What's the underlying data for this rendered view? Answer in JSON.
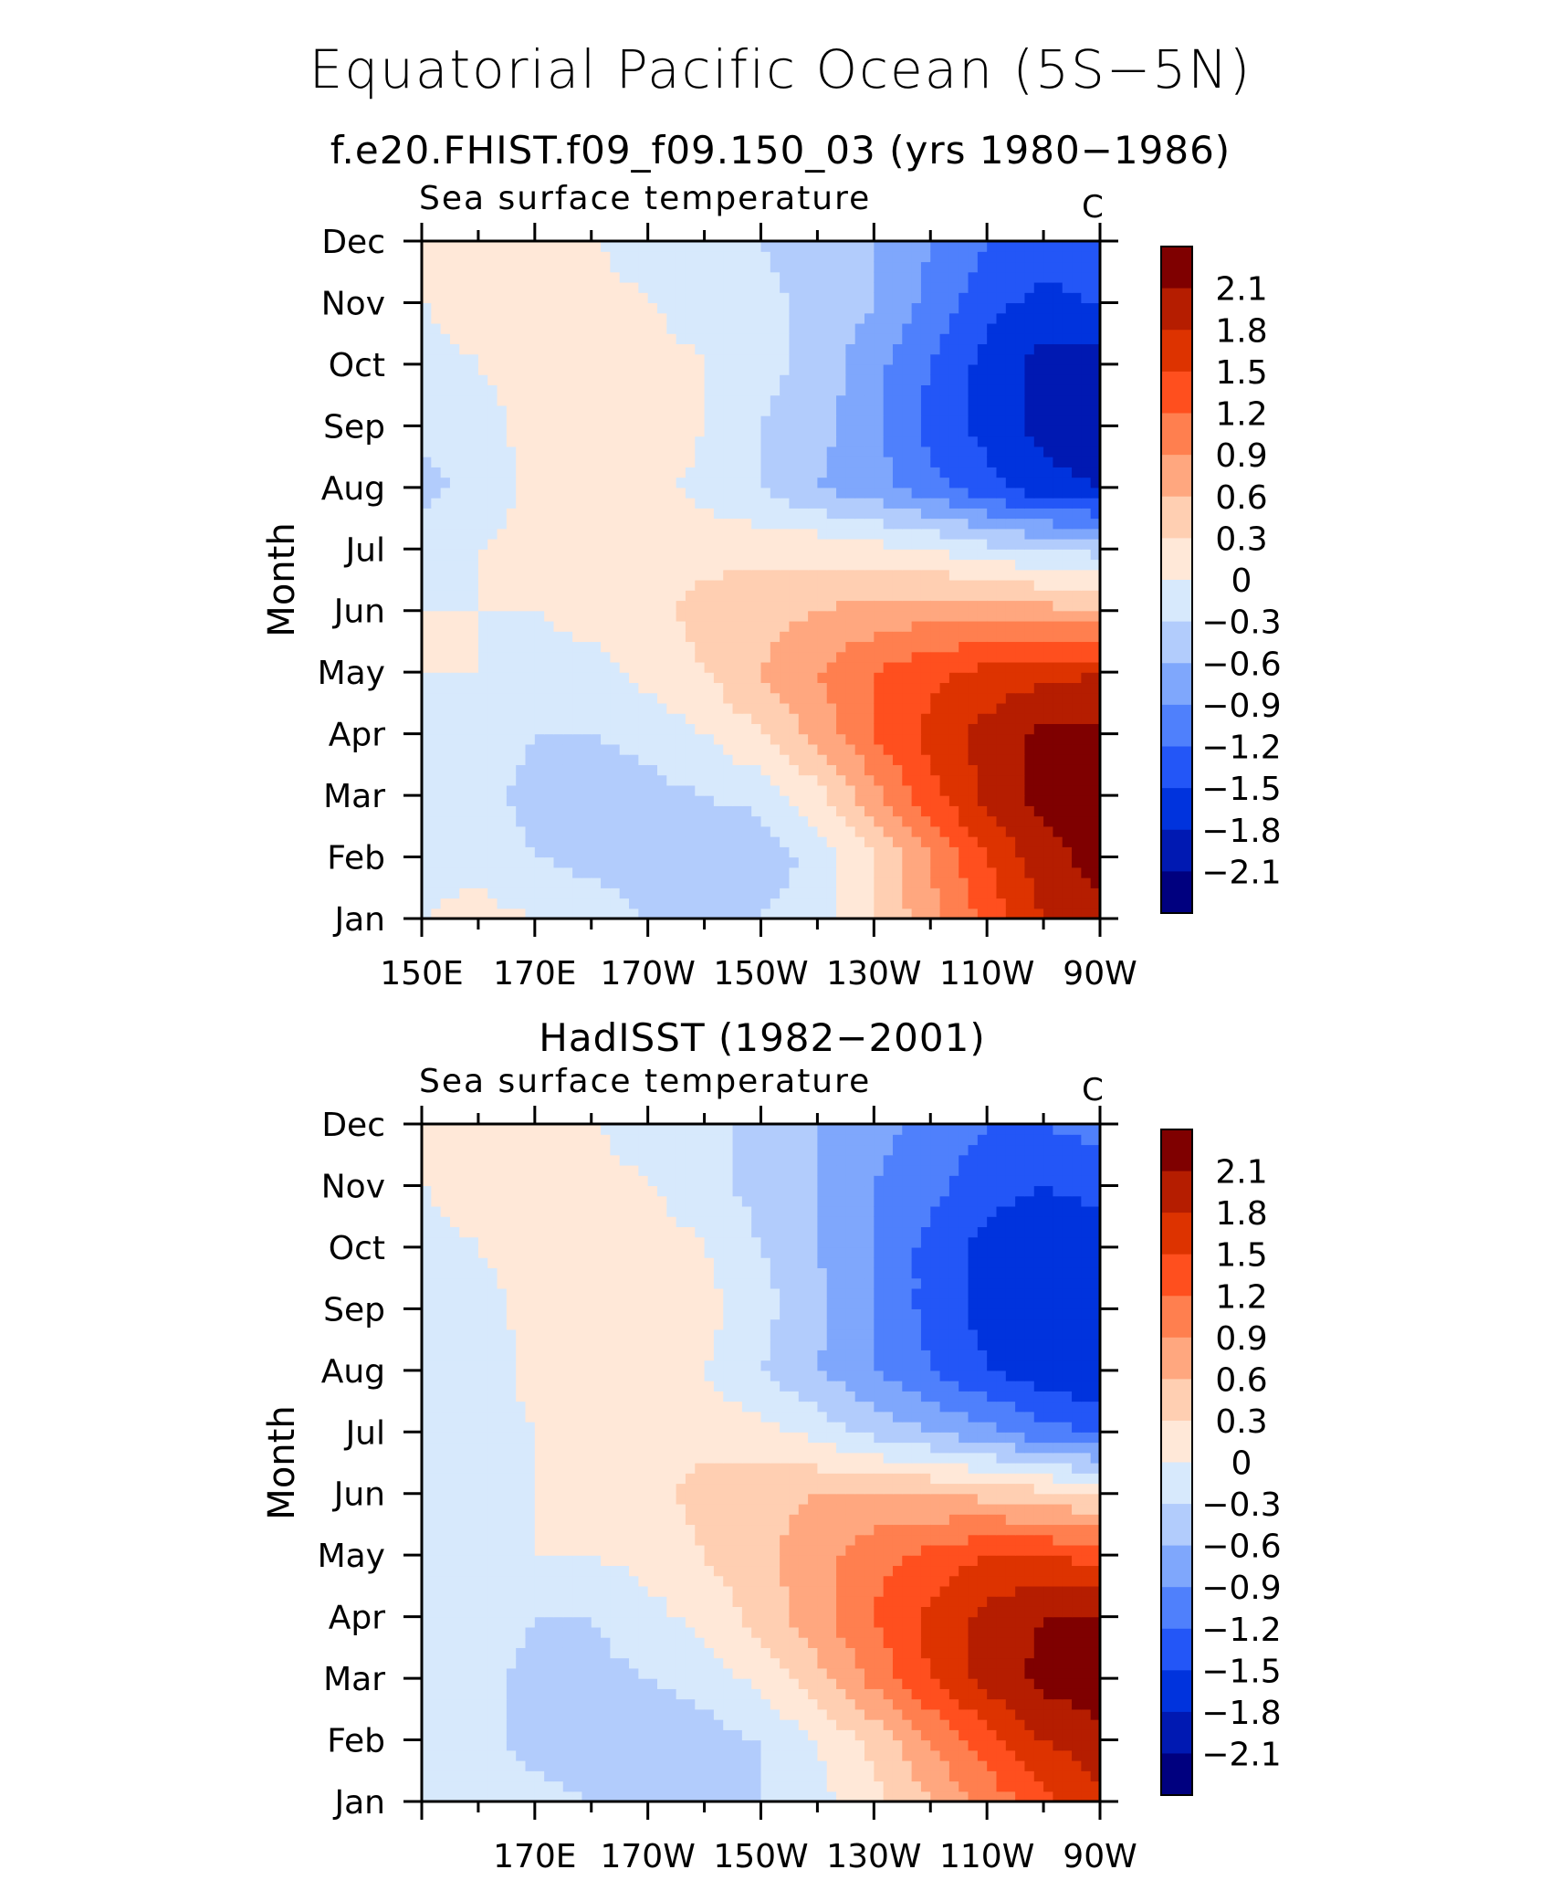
{
  "figure": {
    "title": "Equatorial Pacific Ocean (5S−5N)",
    "colorbar_levels": [
      2.1,
      1.8,
      1.5,
      1.2,
      0.9,
      0.6,
      0.3,
      0,
      -0.3,
      -0.6,
      -0.9,
      -1.2,
      -1.5,
      -1.8,
      -2.1
    ],
    "colorbar_labels": [
      "2.1",
      "1.8",
      "1.5",
      "1.2",
      "0.9",
      "0.6",
      "0.3",
      "0",
      "−0.3",
      "−0.6",
      "−0.9",
      "−1.2",
      "−1.5",
      "−1.8",
      "−2.1"
    ],
    "colorbar_colors": [
      "#7f0000",
      "#b51d00",
      "#dd3300",
      "#ff4f1e",
      "#ff7f4f",
      "#ffa77f",
      "#ffcfb2",
      "#ffe8d8",
      "#d7e9fc",
      "#b2ccfc",
      "#7fa7fc",
      "#4f80fc",
      "#2356f7",
      "#0033dd",
      "#0019b2",
      "#00007f"
    ]
  },
  "chart_data": [
    {
      "type": "heatmap",
      "subtitle": "f.e20.FHIST.f09_f09.150_03 (yrs 1980−1986)",
      "title": "Sea surface temperature",
      "units": "C",
      "ylabel": "Month",
      "y_ticks": [
        "Jan",
        "Feb",
        "Mar",
        "Apr",
        "May",
        "Jun",
        "Jul",
        "Aug",
        "Sep",
        "Oct",
        "Nov",
        "Dec"
      ],
      "x_ticks": [
        "150E",
        "170E",
        "170W",
        "150W",
        "130W",
        "110W",
        "90W"
      ],
      "xlim": [
        150,
        270
      ],
      "x": [
        150,
        160,
        170,
        180,
        190,
        200,
        210,
        220,
        230,
        240,
        250,
        260,
        270
      ],
      "values": [
        [
          0.0,
          0.1,
          0.0,
          -0.1,
          -0.3,
          -0.3,
          -0.3,
          -0.1,
          0.3,
          0.8,
          1.3,
          1.8,
          2.0
        ],
        [
          -0.1,
          -0.1,
          -0.3,
          -0.4,
          -0.5,
          -0.6,
          -0.5,
          -0.2,
          0.3,
          0.9,
          1.5,
          2.0,
          2.2
        ],
        [
          -0.1,
          -0.2,
          -0.4,
          -0.5,
          -0.4,
          -0.3,
          -0.2,
          0.2,
          0.8,
          1.4,
          1.9,
          2.2,
          2.3
        ],
        [
          0.0,
          -0.1,
          -0.3,
          -0.3,
          -0.2,
          0.0,
          0.3,
          0.7,
          1.2,
          1.6,
          1.9,
          2.2,
          2.2
        ],
        [
          0.0,
          0.0,
          -0.1,
          -0.1,
          0.1,
          0.3,
          0.6,
          0.9,
          1.2,
          1.4,
          1.6,
          1.7,
          1.8
        ],
        [
          0.0,
          0.0,
          0.0,
          0.1,
          0.2,
          0.4,
          0.5,
          0.6,
          0.7,
          0.8,
          0.8,
          0.7,
          0.6
        ],
        [
          -0.1,
          0.0,
          0.1,
          0.1,
          0.2,
          0.2,
          0.2,
          0.2,
          0.1,
          0.0,
          -0.2,
          -0.3,
          -0.4
        ],
        [
          -0.4,
          -0.2,
          0.1,
          0.2,
          0.1,
          -0.1,
          -0.3,
          -0.6,
          -0.8,
          -1.1,
          -1.4,
          -1.7,
          -1.8
        ],
        [
          -0.2,
          -0.1,
          0.1,
          0.3,
          0.3,
          0.0,
          -0.3,
          -0.5,
          -0.8,
          -1.3,
          -1.6,
          -1.9,
          -2.0
        ],
        [
          -0.1,
          0.0,
          0.1,
          0.2,
          0.1,
          0.0,
          -0.2,
          -0.4,
          -0.8,
          -1.2,
          -1.6,
          -1.9,
          -1.9
        ],
        [
          0.0,
          0.1,
          0.1,
          0.1,
          0.0,
          -0.1,
          -0.2,
          -0.4,
          -0.6,
          -1.0,
          -1.4,
          -1.6,
          -1.5
        ],
        [
          0.1,
          0.1,
          0.1,
          0.0,
          -0.1,
          -0.2,
          -0.3,
          -0.5,
          -0.6,
          -0.9,
          -1.2,
          -1.3,
          -1.2
        ]
      ]
    },
    {
      "type": "heatmap",
      "subtitle": "HadISST (1982−2001)",
      "title": "Sea surface temperature",
      "units": "C",
      "ylabel": "Month",
      "y_ticks": [
        "Jan",
        "Feb",
        "Mar",
        "Apr",
        "May",
        "Jun",
        "Jul",
        "Aug",
        "Sep",
        "Oct",
        "Nov",
        "Dec"
      ],
      "x_ticks": [
        "170E",
        "170W",
        "150W",
        "130W",
        "110W",
        "90W"
      ],
      "xlim": [
        150,
        270
      ],
      "x": [
        150,
        160,
        170,
        180,
        190,
        200,
        210,
        220,
        230,
        240,
        250,
        260,
        270
      ],
      "values": [
        [
          0.0,
          -0.1,
          -0.2,
          -0.3,
          -0.4,
          -0.4,
          -0.3,
          -0.1,
          0.2,
          0.6,
          1.0,
          1.4,
          1.7
        ],
        [
          -0.1,
          -0.2,
          -0.4,
          -0.5,
          -0.5,
          -0.4,
          -0.3,
          0.0,
          0.4,
          0.9,
          1.4,
          1.8,
          2.0
        ],
        [
          -0.1,
          -0.2,
          -0.4,
          -0.4,
          -0.3,
          -0.2,
          0.1,
          0.5,
          1.0,
          1.5,
          1.9,
          2.2,
          2.3
        ],
        [
          -0.1,
          -0.1,
          -0.3,
          -0.3,
          -0.1,
          0.1,
          0.4,
          0.8,
          1.2,
          1.6,
          1.9,
          2.1,
          2.1
        ],
        [
          0.0,
          -0.1,
          0.0,
          0.0,
          0.1,
          0.3,
          0.5,
          0.8,
          1.1,
          1.3,
          1.5,
          1.5,
          1.4
        ],
        [
          -0.1,
          0.0,
          0.0,
          0.1,
          0.2,
          0.4,
          0.5,
          0.6,
          0.6,
          0.6,
          0.5,
          0.4,
          0.2
        ],
        [
          -0.2,
          -0.1,
          0.0,
          0.1,
          0.2,
          0.2,
          0.1,
          -0.1,
          -0.4,
          -0.6,
          -0.8,
          -1.1,
          -1.2
        ],
        [
          -0.3,
          -0.2,
          0.1,
          0.2,
          0.1,
          0.0,
          -0.3,
          -0.6,
          -0.9,
          -1.2,
          -1.5,
          -1.7,
          -1.8
        ],
        [
          -0.2,
          -0.1,
          0.1,
          0.3,
          0.3,
          0.1,
          -0.2,
          -0.5,
          -0.9,
          -1.3,
          -1.6,
          -1.8,
          -1.8
        ],
        [
          -0.1,
          0.0,
          0.1,
          0.2,
          0.2,
          0.0,
          -0.3,
          -0.6,
          -0.9,
          -1.3,
          -1.6,
          -1.7,
          -1.7
        ],
        [
          0.0,
          0.1,
          0.1,
          0.1,
          0.0,
          -0.2,
          -0.4,
          -0.6,
          -0.9,
          -1.1,
          -1.4,
          -1.5,
          -1.4
        ],
        [
          0.1,
          0.1,
          0.1,
          0.0,
          -0.1,
          -0.2,
          -0.4,
          -0.6,
          -0.8,
          -1.0,
          -1.2,
          -1.2,
          -1.1
        ]
      ]
    }
  ]
}
